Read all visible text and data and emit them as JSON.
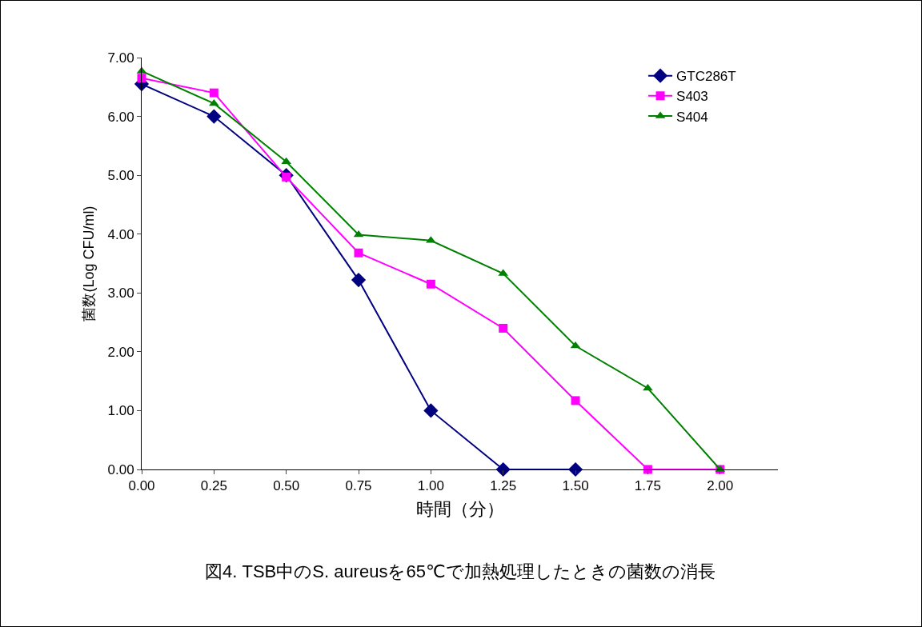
{
  "chart_data": {
    "type": "line",
    "xlabel": "時間（分）",
    "ylabel": "菌数(Log CFU/ml)",
    "annotations": [
      "図4. TSB中のS. aureusを65℃で加熱処理したときの菌数の消長"
    ],
    "x": [
      0,
      0.25,
      0.5,
      0.75,
      1,
      1.25,
      1.5,
      1.75,
      2
    ],
    "series": [
      {
        "name": "GTC286T",
        "color": "#000080",
        "marker": "diamond",
        "values": [
          6.55,
          6.0,
          5.0,
          3.22,
          1.0,
          0,
          0,
          null,
          null
        ]
      },
      {
        "name": "S403",
        "color": "#ff00ff",
        "marker": "square",
        "values": [
          6.65,
          6.4,
          4.97,
          3.68,
          3.15,
          2.4,
          1.17,
          0,
          0
        ]
      },
      {
        "name": "S404",
        "color": "#008000",
        "marker": "triangle",
        "values": [
          6.77,
          6.22,
          5.23,
          3.99,
          3.89,
          3.33,
          2.1,
          1.38,
          0
        ]
      }
    ],
    "xlim": [
      0,
      2.2
    ],
    "xticks": [
      {
        "value": 0,
        "label": "0.00"
      },
      {
        "value": 0.25,
        "label": "0.25"
      },
      {
        "value": 0.5,
        "label": "0.50"
      },
      {
        "value": 0.75,
        "label": "0.75"
      },
      {
        "value": 1,
        "label": "1.00"
      },
      {
        "value": 1.25,
        "label": "1.25"
      },
      {
        "value": 1.5,
        "label": "1.50"
      },
      {
        "value": 1.75,
        "label": "1.75"
      },
      {
        "value": 2,
        "label": "2.00"
      }
    ],
    "ylim": [
      0,
      7
    ],
    "yticks": [
      {
        "value": 0,
        "label": "0.00"
      },
      {
        "value": 1,
        "label": "1.00"
      },
      {
        "value": 2,
        "label": "2.00"
      },
      {
        "value": 3,
        "label": "3.00"
      },
      {
        "value": 4,
        "label": "4.00"
      },
      {
        "value": 5,
        "label": "5.00"
      },
      {
        "value": 6,
        "label": "6.00"
      },
      {
        "value": 7,
        "label": "7.00"
      }
    ],
    "grid": false,
    "legend": "top right",
    "line_style": "solid"
  }
}
